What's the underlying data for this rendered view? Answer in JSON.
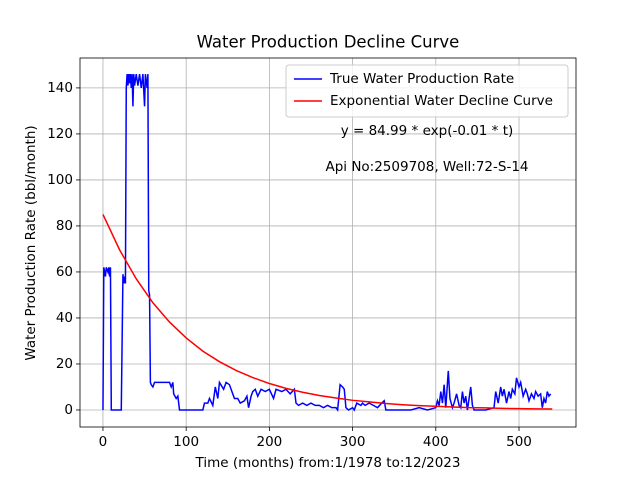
{
  "chart_data": {
    "type": "line",
    "title": "Water Production Decline Curve",
    "xlabel": "Time (months) from:1/1978 to:12/2023",
    "ylabel": "Water Production Rate (bbl/month)",
    "annotations": [
      "y = 84.99 * exp(-0.01 * t)",
      "Api No:2509708, Well:72-S-14"
    ],
    "xlim": [
      -27.6,
      568.5
    ],
    "ylim": [
      -7.4,
      153
    ],
    "xticks": [
      0,
      100,
      200,
      300,
      400,
      500
    ],
    "yticks": [
      0,
      20,
      40,
      60,
      80,
      100,
      120,
      140
    ],
    "grid": true,
    "legend": "upper right",
    "series": [
      {
        "name": "True Water Production Rate",
        "color": "#0000ff",
        "x": [
          0,
          1,
          3,
          4,
          6,
          7,
          8,
          9,
          10,
          20,
          22,
          24,
          25,
          26,
          27,
          28,
          29,
          30,
          31,
          32,
          33,
          34,
          35,
          36,
          37,
          38,
          40,
          42,
          44,
          46,
          48,
          50,
          51,
          53,
          54,
          55,
          56,
          57,
          58,
          60,
          62,
          70,
          80,
          82,
          84,
          85,
          88,
          90,
          92,
          100,
          110,
          120,
          122,
          126,
          128,
          132,
          135,
          138,
          140,
          145,
          148,
          152,
          155,
          158,
          162,
          165,
          170,
          173,
          175,
          178,
          180,
          183,
          186,
          190,
          195,
          200,
          205,
          208,
          215,
          220,
          225,
          230,
          232,
          235,
          240,
          245,
          250,
          255,
          260,
          265,
          270,
          275,
          280,
          282,
          285,
          288,
          290,
          292,
          295,
          300,
          302,
          305,
          310,
          312,
          315,
          320,
          325,
          330,
          335,
          338,
          340,
          350,
          360,
          370,
          380,
          390,
          400,
          402,
          404,
          406,
          408,
          410,
          412,
          415,
          417,
          420,
          422,
          425,
          428,
          430,
          432,
          434,
          436,
          438,
          440,
          442,
          444,
          446,
          450,
          460,
          470,
          472,
          475,
          478,
          480,
          482,
          485,
          488,
          490,
          492,
          495,
          497,
          500,
          502,
          505,
          508,
          510,
          512,
          515,
          518,
          520,
          523,
          526,
          528,
          530,
          532,
          534,
          536,
          538
        ],
        "values": [
          0,
          62,
          58,
          62,
          60,
          62,
          58,
          62,
          0,
          0,
          0,
          59,
          55,
          58,
          55,
          140,
          146,
          141,
          146,
          142,
          146,
          140,
          146,
          132,
          146,
          141,
          146,
          141,
          146,
          140,
          146,
          132,
          146,
          140,
          146,
          52,
          50,
          12,
          11,
          10,
          12,
          12,
          12,
          10,
          12,
          7,
          5,
          6,
          0,
          0,
          0,
          0,
          3,
          3,
          5,
          2,
          10,
          5,
          12,
          9,
          12,
          11,
          8,
          5,
          5,
          3,
          4,
          6,
          1,
          6,
          8,
          9,
          6,
          9,
          8,
          9,
          5,
          9,
          8,
          9,
          7,
          9,
          3,
          2,
          3,
          2,
          3,
          2,
          2,
          1,
          2,
          1,
          1,
          0,
          11,
          10,
          9,
          1,
          0,
          1,
          0,
          3,
          2,
          3,
          2,
          3,
          2,
          1,
          3,
          4,
          0,
          0,
          0,
          0,
          1,
          0,
          1,
          4,
          2,
          8,
          3,
          11,
          1,
          17,
          5,
          1,
          3,
          7,
          2,
          1,
          8,
          3,
          6,
          0,
          5,
          10,
          2,
          0,
          0,
          0,
          1,
          8,
          3,
          10,
          6,
          9,
          3,
          8,
          5,
          9,
          7,
          14,
          10,
          12,
          6,
          9,
          7,
          4,
          7,
          5,
          8,
          6,
          7,
          1,
          5,
          3,
          8,
          6,
          7
        ]
      },
      {
        "name": "Exponential Water Decline Curve",
        "color": "#ff0000",
        "x": [
          0,
          20,
          40,
          60,
          80,
          100,
          120,
          140,
          160,
          180,
          200,
          220,
          240,
          260,
          280,
          300,
          320,
          340,
          360,
          380,
          400,
          420,
          440,
          460,
          480,
          500,
          520,
          540
        ],
        "values": [
          84.99,
          69.6,
          57.0,
          46.6,
          38.2,
          31.3,
          25.6,
          21.0,
          17.2,
          14.1,
          11.5,
          9.4,
          7.7,
          6.3,
          5.2,
          4.2,
          3.5,
          2.8,
          2.3,
          1.9,
          1.6,
          1.3,
          1.0,
          0.9,
          0.7,
          0.6,
          0.5,
          0.4
        ]
      }
    ]
  }
}
